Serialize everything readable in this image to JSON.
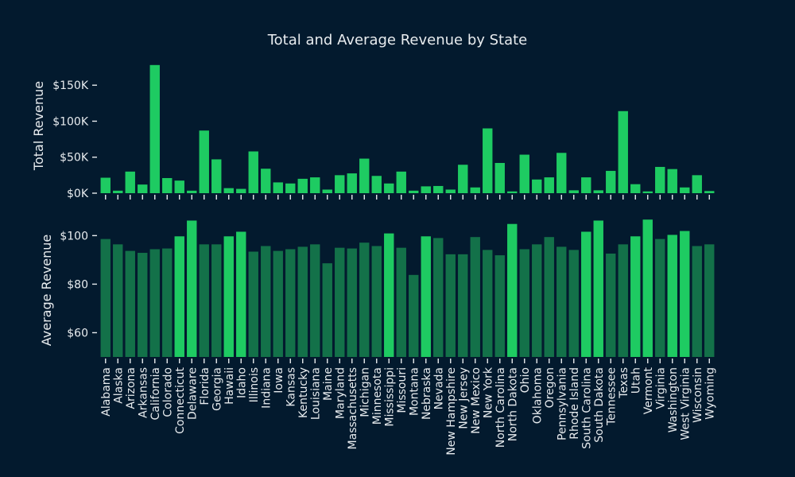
{
  "chart_data": {
    "type": "bar",
    "title": "Total and Average Revenue by State",
    "categories": [
      "Alabama",
      "Alaska",
      "Arizona",
      "Arkansas",
      "California",
      "Colorado",
      "Connecticut",
      "Delaware",
      "Florida",
      "Georgia",
      "Hawaii",
      "Idaho",
      "Illinois",
      "Indiana",
      "Iowa",
      "Kansas",
      "Kentucky",
      "Louisiana",
      "Maine",
      "Maryland",
      "Massachusetts",
      "Michigan",
      "Minnesota",
      "Mississippi",
      "Missouri",
      "Montana",
      "Nebraska",
      "Nevada",
      "New Hampshire",
      "New Jersey",
      "New Mexico",
      "New York",
      "North Carolina",
      "North Dakota",
      "Ohio",
      "Oklahoma",
      "Oregon",
      "Pennsylvania",
      "Rhode Island",
      "South Carolina",
      "South Dakota",
      "Tennessee",
      "Texas",
      "Utah",
      "Vermont",
      "Virginia",
      "Washington",
      "West Virginia",
      "Wisconsin",
      "Wyoming"
    ],
    "panels": [
      {
        "ylabel": "Total Revenue",
        "ylim": [
          0,
          180000
        ],
        "yticks": [
          0,
          50000,
          100000,
          150000
        ],
        "ytick_labels": [
          "$0K",
          "$50K",
          "$100K",
          "$150K"
        ],
        "values": [
          21500,
          3500,
          30000,
          12000,
          178000,
          21000,
          17500,
          3500,
          87000,
          47000,
          7000,
          6000,
          58000,
          34000,
          15000,
          13500,
          20000,
          22000,
          5000,
          25000,
          27500,
          48000,
          24000,
          13500,
          30000,
          3500,
          9500,
          10000,
          5000,
          39500,
          8000,
          90000,
          42000,
          2500,
          53500,
          19000,
          22000,
          56000,
          4000,
          22000,
          4000,
          31000,
          114000,
          12500,
          2500,
          36500,
          33500,
          8000,
          25000,
          3000
        ]
      },
      {
        "ylabel": "Average Revenue",
        "ylim": [
          50,
          107
        ],
        "yticks": [
          60,
          80,
          100
        ],
        "ytick_labels": [
          "$60",
          "$80",
          "$100"
        ],
        "values": [
          98.6,
          96.4,
          93.7,
          92.9,
          94.4,
          94.7,
          99.7,
          106.2,
          96.4,
          96.4,
          99.7,
          101.6,
          93.4,
          95.7,
          93.7,
          94.4,
          95.4,
          96.4,
          88.6,
          95.0,
          94.7,
          97.1,
          95.7,
          100.9,
          95.0,
          83.8,
          99.7,
          99.0,
          92.3,
          92.3,
          99.4,
          94.1,
          91.9,
          104.8,
          94.4,
          96.4,
          99.4,
          95.4,
          94.1,
          101.6,
          106.2,
          92.6,
          96.4,
          99.7,
          106.6,
          98.6,
          100.3,
          101.9,
          95.7,
          96.4
        ],
        "highlight_threshold": 99.5
      }
    ],
    "colors": {
      "total_bar": "#1ecb62",
      "avg_bar": "#137149",
      "avg_highlight": "#1ecb62",
      "background": "#031a2e",
      "text": "#e8ecef"
    }
  }
}
